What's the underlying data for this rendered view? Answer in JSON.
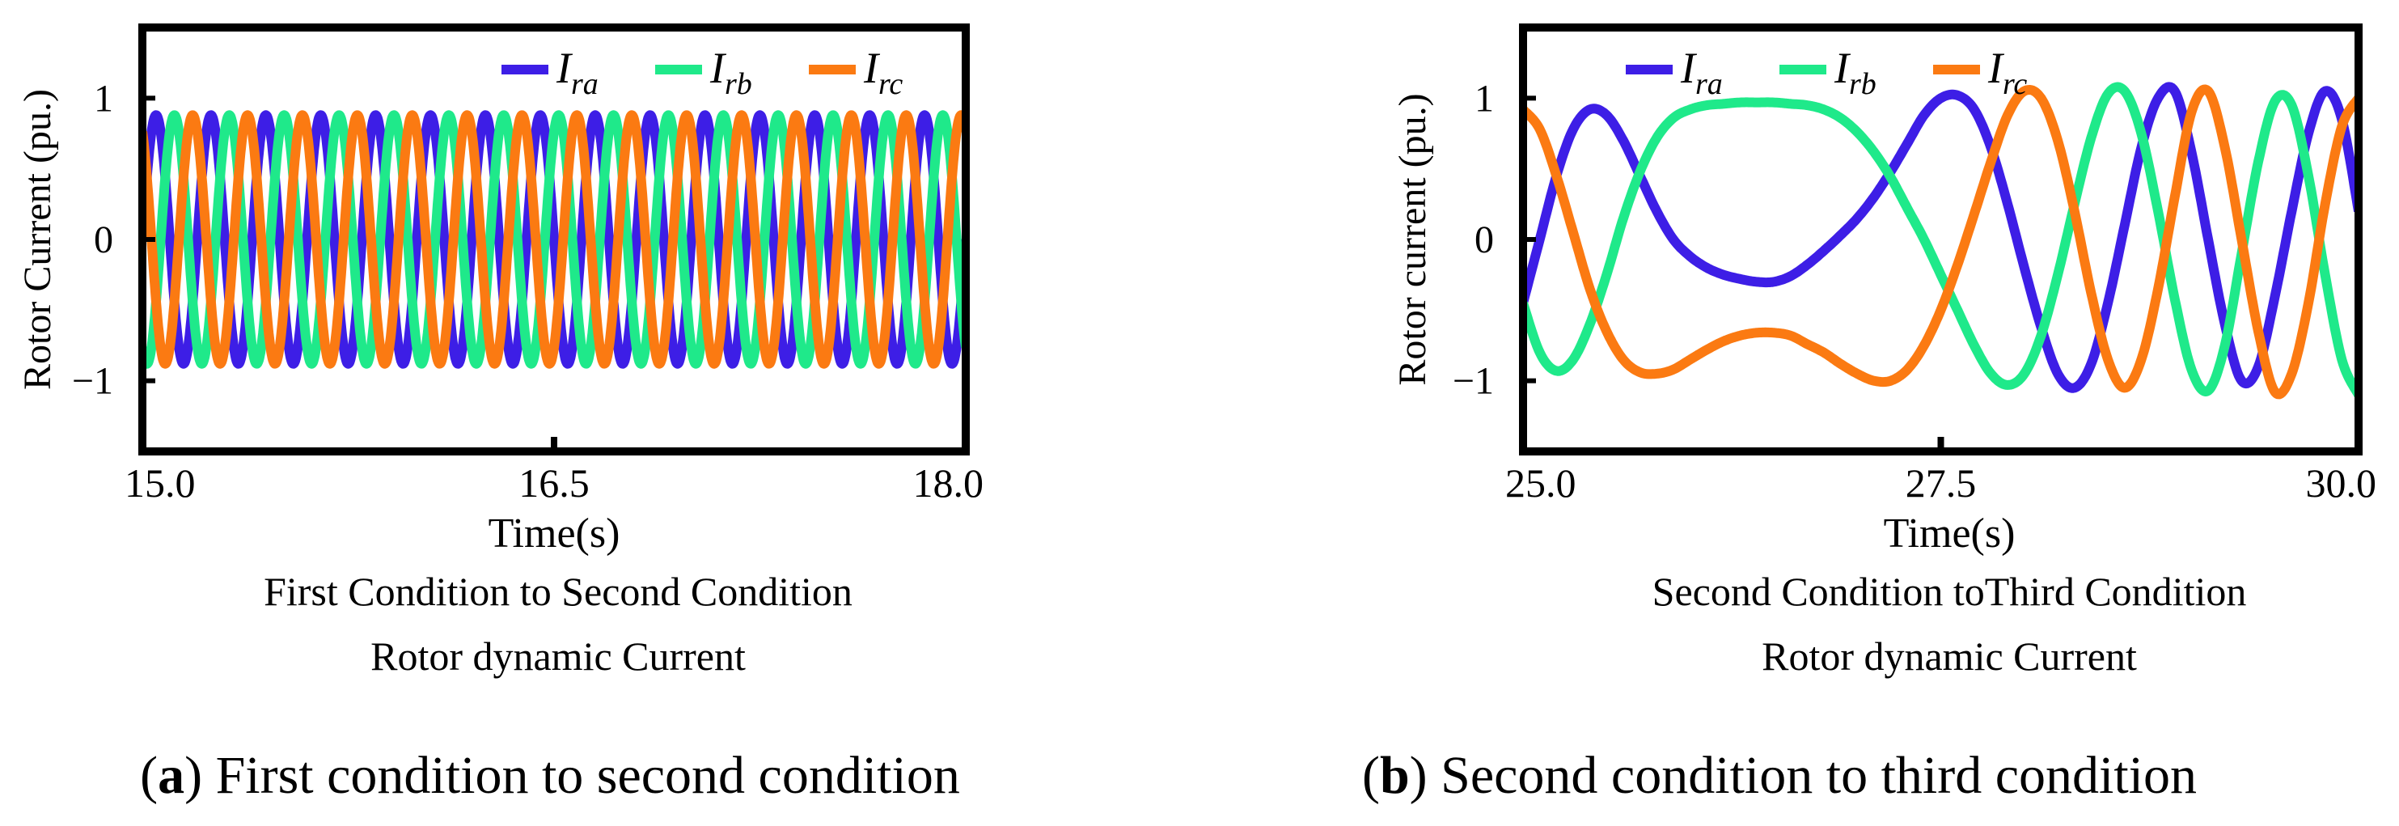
{
  "panels": [
    {
      "ylabel": "Rotor Current (pu.)",
      "xlabel": "Time(s)",
      "caption_lines": [
        "First Condition to Second Condition",
        "Rotor dynamic Current"
      ],
      "sub_label": "a",
      "sub_caption": "First condition to second condition"
    },
    {
      "ylabel": "Rotor current (pu.)",
      "xlabel": "Time(s)",
      "caption_lines": [
        "Second Condition toThird Condition",
        "Rotor dynamic Current"
      ],
      "sub_label": "b",
      "sub_caption": "Second condition to third condition"
    }
  ],
  "legend": [
    {
      "main": "I",
      "sub": "ra"
    },
    {
      "main": "I",
      "sub": "rb"
    },
    {
      "main": "I",
      "sub": "rc"
    }
  ],
  "chart_data": [
    {
      "type": "line",
      "xlabel": "Time(s)",
      "ylabel": "Rotor Current (pu.)",
      "xlim": [
        15.0,
        18.0
      ],
      "ylim": [
        -1.5,
        1.5
      ],
      "xticks": [
        "15.0",
        "16.5",
        "18.0"
      ],
      "yticks": [
        "1",
        "0",
        "−1"
      ],
      "legend_position": "top-right",
      "series": [
        {
          "name": "I_ra",
          "color": "#3d1ee6",
          "amplitude": 0.88,
          "frequency_hz": 5.0,
          "phase_deg": 0,
          "x": [
            15.0,
            15.05,
            15.1,
            15.15,
            15.2,
            15.25,
            15.3,
            15.35,
            15.4,
            15.45,
            15.5,
            15.55,
            15.6,
            15.65,
            15.7,
            15.75,
            15.8,
            15.85,
            15.9,
            15.95,
            16.0,
            16.05,
            16.1,
            16.15,
            16.2,
            16.25,
            16.3,
            16.35,
            16.4,
            16.45,
            16.5,
            16.55,
            16.6,
            16.65,
            16.7,
            16.75,
            16.8,
            16.85,
            16.9,
            16.95,
            17.0,
            17.05,
            17.1,
            17.15,
            17.2,
            17.25,
            17.3,
            17.35,
            17.4,
            17.45,
            17.5,
            17.55,
            17.6,
            17.65,
            17.7,
            17.75,
            17.8,
            17.85,
            17.9,
            17.95,
            18.0
          ],
          "y": [
            0.0,
            0.88,
            0.0,
            -0.88,
            0.0,
            0.88,
            0.0,
            -0.88,
            0.0,
            0.88,
            0.0,
            -0.88,
            0.0,
            0.88,
            0.0,
            -0.88,
            0.0,
            0.88,
            0.0,
            -0.88,
            0.0,
            0.88,
            0.0,
            -0.88,
            0.0,
            0.88,
            0.0,
            -0.88,
            0.0,
            0.88,
            0.0,
            -0.88,
            0.0,
            0.88,
            0.0,
            -0.88,
            0.0,
            0.88,
            0.0,
            -0.88,
            0.0,
            0.88,
            0.0,
            -0.88,
            0.0,
            0.88,
            0.0,
            -0.88,
            0.0,
            0.88,
            0.0,
            -0.88,
            0.0,
            0.88,
            0.0,
            -0.88,
            0.0,
            0.88,
            0.0,
            -0.88,
            0.0
          ]
        },
        {
          "name": "I_rb",
          "color": "#1fe98a",
          "amplitude": 0.88,
          "frequency_hz": 5.0,
          "phase_deg": -120
        },
        {
          "name": "I_rc",
          "color": "#fb7a12",
          "amplitude": 0.88,
          "frequency_hz": 5.0,
          "phase_deg": 120
        }
      ]
    },
    {
      "type": "line",
      "xlabel": "Time(s)",
      "ylabel": "Rotor current (pu.)",
      "xlim": [
        25.0,
        30.0
      ],
      "ylim": [
        -1.5,
        1.5
      ],
      "xticks": [
        "25.0",
        "27.5",
        "30.0"
      ],
      "yticks": [
        "1",
        "0",
        "−1"
      ],
      "legend_position": "top-left",
      "series": [
        {
          "name": "I_ra",
          "color": "#3d1ee6",
          "x": [
            25.0,
            25.1,
            25.2,
            25.3,
            25.4,
            25.5,
            25.6,
            25.7,
            25.8,
            25.9,
            26.0,
            26.1,
            26.2,
            26.3,
            26.4,
            26.5,
            26.6,
            26.7,
            26.8,
            26.9,
            27.0,
            27.1,
            27.2,
            27.3,
            27.4,
            27.5,
            27.6,
            27.7,
            27.8,
            27.9,
            28.0,
            28.1,
            28.2,
            28.3,
            28.4,
            28.5,
            28.6,
            28.7,
            28.8,
            28.9,
            29.0,
            29.1,
            29.2,
            29.3,
            29.4,
            29.5,
            29.6,
            29.7,
            29.8,
            29.9,
            30.0
          ],
          "y": [
            -0.45,
            0.0,
            0.45,
            0.78,
            0.92,
            0.88,
            0.7,
            0.45,
            0.2,
            0.0,
            -0.12,
            -0.2,
            -0.25,
            -0.28,
            -0.3,
            -0.3,
            -0.26,
            -0.18,
            -0.08,
            0.03,
            0.15,
            0.3,
            0.48,
            0.68,
            0.88,
            1.0,
            1.02,
            0.92,
            0.65,
            0.25,
            -0.2,
            -0.62,
            -0.95,
            -1.05,
            -0.88,
            -0.45,
            0.1,
            0.65,
            1.0,
            1.05,
            0.62,
            0.0,
            -0.6,
            -1.0,
            -0.9,
            -0.4,
            0.2,
            0.75,
            1.05,
            0.85,
            0.2
          ]
        },
        {
          "name": "I_rb",
          "color": "#1fe98a",
          "x": [
            25.0,
            25.1,
            25.2,
            25.3,
            25.4,
            25.5,
            25.6,
            25.7,
            25.8,
            25.9,
            26.0,
            26.1,
            26.2,
            26.3,
            26.4,
            26.5,
            26.6,
            26.7,
            26.8,
            26.9,
            27.0,
            27.1,
            27.2,
            27.3,
            27.4,
            27.5,
            27.6,
            27.7,
            27.8,
            27.9,
            28.0,
            28.1,
            28.2,
            28.3,
            28.4,
            28.5,
            28.6,
            28.7,
            28.8,
            28.9,
            29.0,
            29.1,
            29.2,
            29.3,
            29.4,
            29.5,
            29.6,
            29.7,
            29.8,
            29.9,
            30.0
          ],
          "y": [
            -0.45,
            -0.8,
            -0.93,
            -0.85,
            -0.6,
            -0.25,
            0.15,
            0.48,
            0.72,
            0.86,
            0.92,
            0.95,
            0.96,
            0.97,
            0.97,
            0.97,
            0.96,
            0.95,
            0.92,
            0.86,
            0.76,
            0.62,
            0.44,
            0.22,
            0.0,
            -0.25,
            -0.5,
            -0.75,
            -0.95,
            -1.03,
            -0.95,
            -0.68,
            -0.25,
            0.25,
            0.72,
            1.03,
            1.05,
            0.75,
            0.2,
            -0.42,
            -0.92,
            -1.07,
            -0.75,
            -0.1,
            0.55,
            0.98,
            0.95,
            0.45,
            -0.25,
            -0.85,
            -1.1
          ]
        },
        {
          "name": "I_rc",
          "color": "#fb7a12",
          "x": [
            25.0,
            25.1,
            25.2,
            25.3,
            25.4,
            25.5,
            25.6,
            25.7,
            25.8,
            25.9,
            26.0,
            26.1,
            26.2,
            26.3,
            26.4,
            26.5,
            26.6,
            26.7,
            26.8,
            26.9,
            27.0,
            27.1,
            27.2,
            27.3,
            27.4,
            27.5,
            27.6,
            27.7,
            27.8,
            27.9,
            28.0,
            28.1,
            28.2,
            28.3,
            28.4,
            28.5,
            28.6,
            28.7,
            28.8,
            28.9,
            29.0,
            29.1,
            29.2,
            29.3,
            29.4,
            29.5,
            29.6,
            29.7,
            29.8,
            29.9,
            30.0
          ],
          "y": [
            0.92,
            0.78,
            0.45,
            0.05,
            -0.35,
            -0.65,
            -0.85,
            -0.94,
            -0.95,
            -0.92,
            -0.85,
            -0.78,
            -0.72,
            -0.68,
            -0.66,
            -0.66,
            -0.68,
            -0.74,
            -0.8,
            -0.88,
            -0.95,
            -1.0,
            -1.0,
            -0.92,
            -0.75,
            -0.5,
            -0.18,
            0.18,
            0.55,
            0.88,
            1.05,
            1.0,
            0.7,
            0.2,
            -0.38,
            -0.85,
            -1.05,
            -0.85,
            -0.35,
            0.3,
            0.9,
            1.05,
            0.65,
            0.0,
            -0.65,
            -1.08,
            -0.95,
            -0.45,
            0.25,
            0.8,
            1.0
          ]
        }
      ]
    }
  ],
  "colors": {
    "ira": "#3d1ee6",
    "irb": "#1fe98a",
    "irc": "#fb7a12",
    "axis": "#000000"
  }
}
